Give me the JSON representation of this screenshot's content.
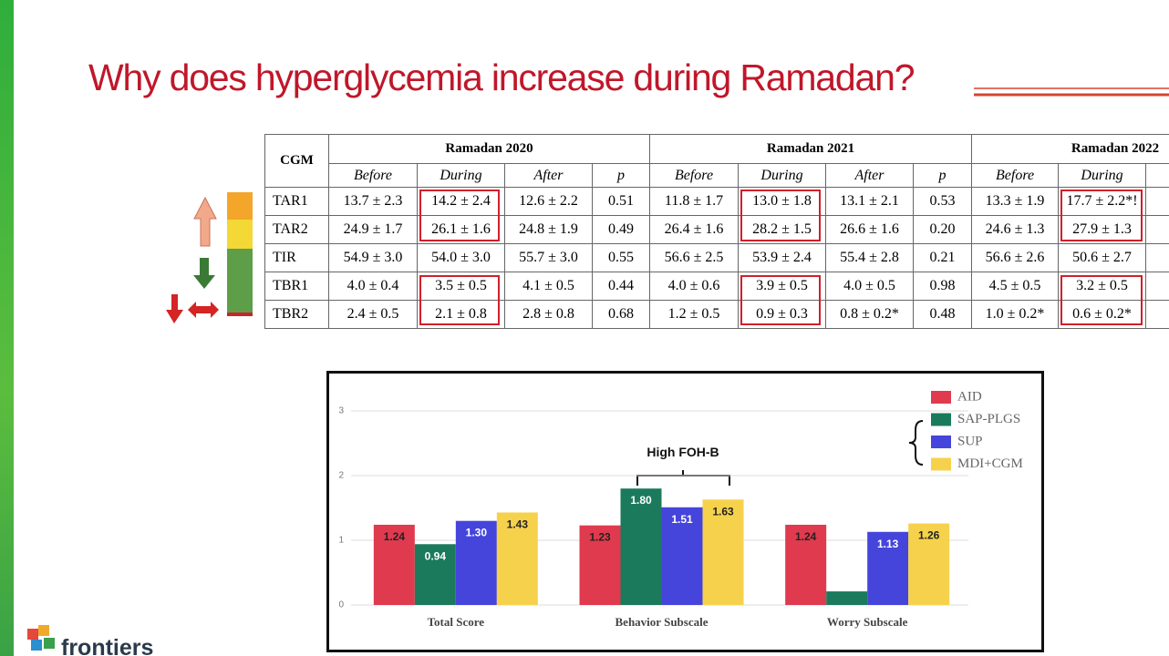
{
  "title": "Why does hyperglycemia increase during Ramadan?",
  "table": {
    "header": [
      "CGM",
      "Ramadan 2020",
      "Ramadan 2021",
      "Ramadan 2022"
    ],
    "subheader": [
      "Before",
      "During",
      "After",
      "p",
      "Before",
      "During",
      "After",
      "p",
      "Before",
      "During"
    ],
    "rows": [
      [
        "TAR1",
        "13.7 ± 2.3",
        "14.2 ± 2.4",
        "12.6 ± 2.2",
        "0.51",
        "11.8 ± 1.7",
        "13.0 ± 1.8",
        "13.1 ± 2.1",
        "0.53",
        "13.3 ± 1.9",
        "17.7 ± 2.2*!"
      ],
      [
        "TAR2",
        "24.9 ± 1.7",
        "26.1 ± 1.6",
        "24.8 ± 1.9",
        "0.49",
        "26.4 ± 1.6",
        "28.2 ± 1.5",
        "26.6 ± 1.6",
        "0.20",
        "24.6 ± 1.3",
        "27.9 ± 1.3"
      ],
      [
        "TIR",
        "54.9 ± 3.0",
        "54.0 ± 3.0",
        "55.7 ± 3.0",
        "0.55",
        "56.6 ± 2.5",
        "53.9 ± 2.4",
        "55.4 ± 2.8",
        "0.21",
        "56.6 ± 2.6",
        "50.6 ± 2.7"
      ],
      [
        "TBR1",
        "4.0 ± 0.4",
        "3.5 ± 0.5",
        "4.1 ± 0.5",
        "0.44",
        "4.0 ± 0.6",
        "3.9 ± 0.5",
        "4.0 ± 0.5",
        "0.98",
        "4.5 ± 0.5",
        "3.2 ± 0.5"
      ],
      [
        "TBR2",
        "2.4 ± 0.5",
        "2.1 ± 0.8",
        "2.8 ± 0.8",
        "0.68",
        "1.2 ± 0.5",
        "0.9 ± 0.3",
        "0.8 ± 0.2*",
        "0.48",
        "1.0 ± 0.2*",
        "0.6 ± 0.2*"
      ]
    ]
  },
  "chart_data": {
    "type": "bar",
    "categories": [
      "Total Score",
      "Behavior Subscale",
      "Worry Subscale"
    ],
    "series": [
      {
        "name": "AID",
        "color": "#e03a4e",
        "values": [
          1.24,
          1.23,
          1.24
        ],
        "value_labels": [
          "1.24",
          "1.23",
          "1.24"
        ]
      },
      {
        "name": "SAP-PLGS",
        "color": "#1b7a5c",
        "values": [
          0.94,
          1.8,
          0.21
        ],
        "value_labels": [
          "0.94",
          "1.80",
          null
        ]
      },
      {
        "name": "SUP",
        "color": "#4545dc",
        "values": [
          1.3,
          1.51,
          1.13
        ],
        "value_labels": [
          "1.30",
          "1.51",
          "1.13"
        ]
      },
      {
        "name": "MDI+CGM",
        "color": "#f6d24c",
        "values": [
          1.43,
          1.63,
          1.26
        ],
        "value_labels": [
          "1.43",
          "1.63",
          "1.26"
        ]
      }
    ],
    "ylim": [
      0,
      3.3
    ],
    "yticks": [
      0,
      1,
      2,
      3
    ],
    "grid": true,
    "annotations": [
      "High FOH-B",
      "**"
    ]
  },
  "logo": "frontiers"
}
